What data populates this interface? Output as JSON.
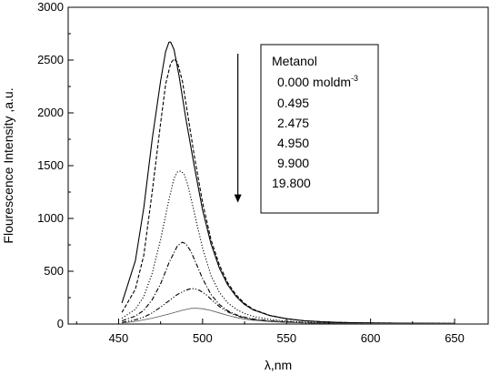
{
  "chart_data": {
    "type": "line",
    "xlabel": "λ,nm",
    "ylabel": "Flourescence Intensity ,a.u.",
    "xlim": [
      420,
      670
    ],
    "ylim": [
      0,
      3000
    ],
    "x_ticks": [
      450,
      500,
      550,
      600,
      650
    ],
    "x_tick_labels": [
      "450",
      "500",
      "550",
      "600",
      "650"
    ],
    "y_ticks": [
      0,
      500,
      1000,
      1500,
      2000,
      2500,
      3000
    ],
    "y_tick_labels": [
      "0",
      "500",
      "1000",
      "1500",
      "2000",
      "2500",
      "3000"
    ],
    "grid": false,
    "legend": {
      "placement": "top-right",
      "title": "Metanol",
      "unit_text": "moldm",
      "unit_superscript": "-3"
    },
    "series": [
      {
        "name": "0.000",
        "dash": "solid",
        "x": [
          452,
          460,
          465,
          470,
          475,
          478,
          480,
          481,
          483,
          486,
          490,
          495,
          500,
          505,
          510,
          515,
          520,
          525,
          530,
          540,
          550,
          560,
          570,
          580,
          590,
          600,
          620,
          650
        ],
        "y": [
          200,
          600,
          1100,
          1750,
          2300,
          2580,
          2670,
          2670,
          2600,
          2350,
          1950,
          1500,
          1080,
          760,
          530,
          370,
          260,
          185,
          135,
          80,
          50,
          32,
          22,
          16,
          12,
          10,
          8,
          6
        ]
      },
      {
        "name": "0.495",
        "dash": "dashed",
        "x": [
          452,
          460,
          465,
          470,
          475,
          478,
          481,
          483,
          485,
          488,
          490,
          495,
          500,
          505,
          510,
          515,
          520,
          525,
          530,
          540,
          550,
          560,
          570,
          580,
          590,
          600,
          620,
          650
        ],
        "y": [
          110,
          330,
          650,
          1250,
          1900,
          2270,
          2470,
          2510,
          2480,
          2300,
          2100,
          1600,
          1150,
          800,
          560,
          390,
          275,
          195,
          140,
          82,
          50,
          32,
          22,
          16,
          12,
          10,
          8,
          6
        ]
      },
      {
        "name": "2.475",
        "dash": "dotted",
        "x": [
          452,
          460,
          465,
          470,
          475,
          480,
          483,
          485,
          487,
          489,
          491,
          494,
          497,
          500,
          505,
          510,
          515,
          520,
          525,
          530,
          540,
          550,
          560,
          570,
          580,
          600,
          620,
          650
        ],
        "y": [
          55,
          140,
          260,
          480,
          800,
          1180,
          1380,
          1440,
          1450,
          1420,
          1330,
          1130,
          920,
          720,
          460,
          300,
          200,
          140,
          100,
          72,
          44,
          28,
          18,
          13,
          10,
          7,
          6,
          5
        ]
      },
      {
        "name": "4.950",
        "dash": "dashdot",
        "x": [
          452,
          460,
          465,
          470,
          475,
          480,
          485,
          488,
          490,
          493,
          496,
          500,
          505,
          510,
          515,
          520,
          525,
          530,
          540,
          550,
          560,
          570,
          580,
          600,
          620,
          650
        ],
        "y": [
          30,
          75,
          130,
          230,
          380,
          580,
          740,
          775,
          760,
          690,
          580,
          430,
          280,
          185,
          125,
          88,
          64,
          48,
          30,
          20,
          14,
          10,
          8,
          6,
          5,
          4
        ]
      },
      {
        "name": "9.900",
        "dash": "dashdotdot",
        "x": [
          452,
          460,
          465,
          470,
          475,
          480,
          485,
          490,
          493,
          495,
          498,
          502,
          506,
          510,
          515,
          520,
          525,
          530,
          540,
          550,
          560,
          570,
          580,
          600,
          620,
          650
        ],
        "y": [
          15,
          40,
          65,
          105,
          160,
          220,
          280,
          320,
          335,
          335,
          320,
          280,
          220,
          165,
          115,
          80,
          58,
          43,
          27,
          18,
          12,
          9,
          7,
          5,
          4,
          3
        ]
      },
      {
        "name": "19.800",
        "dash": "thin",
        "x": [
          452,
          460,
          470,
          480,
          488,
          493,
          496,
          500,
          505,
          510,
          515,
          520,
          525,
          530,
          540,
          550,
          560,
          570,
          580,
          600,
          620,
          650
        ],
        "y": [
          10,
          25,
          55,
          95,
          130,
          148,
          150,
          145,
          128,
          105,
          82,
          62,
          47,
          36,
          23,
          15,
          11,
          8,
          6,
          4,
          3,
          3
        ]
      }
    ],
    "annotation": {
      "type": "arrow-down",
      "x": 521,
      "y_from": 2560,
      "y_to": 1150
    }
  }
}
